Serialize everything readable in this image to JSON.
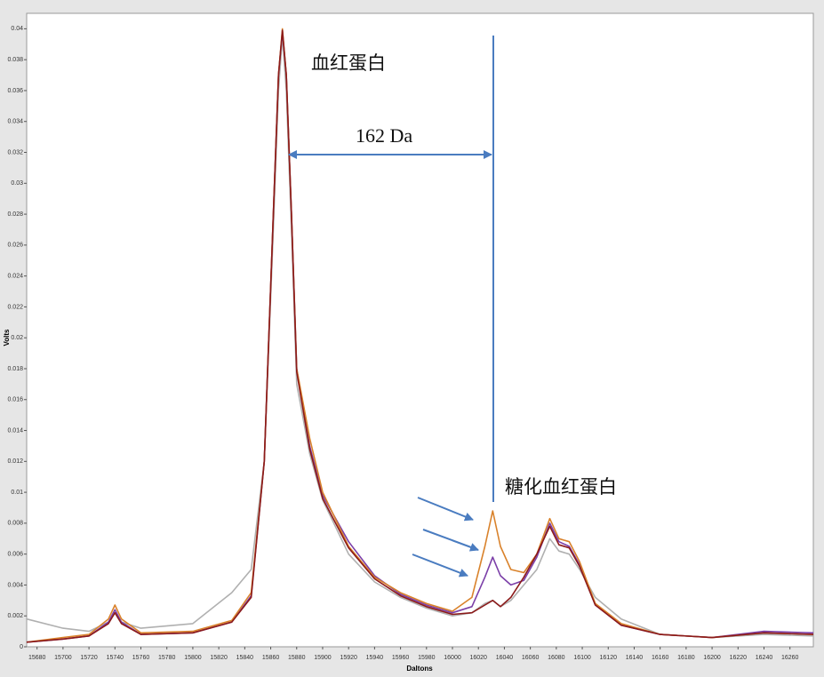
{
  "chart_data": {
    "type": "line",
    "y_label": "Volts",
    "x_label": "Daltons",
    "annotations": [
      "血红蛋白",
      "162 Da",
      "糖化血红蛋白"
    ],
    "xlim": [
      15672,
      16278
    ],
    "ylim": [
      0,
      0.041
    ],
    "xticks": [
      15680,
      15700,
      15720,
      15740,
      15760,
      15780,
      15800,
      15820,
      15840,
      15860,
      15880,
      15900,
      15920,
      15940,
      15960,
      15980,
      16000,
      16020,
      16040,
      16060,
      16080,
      16100,
      16120,
      16140,
      16160,
      16180,
      16200,
      16220,
      16240,
      16260
    ],
    "yticks": [
      0,
      0.002,
      0.004,
      0.006,
      0.008,
      0.01,
      0.012,
      0.014,
      0.016,
      0.018,
      0.02,
      0.022,
      0.024,
      0.026,
      0.028,
      0.03,
      0.032,
      0.034,
      0.036,
      0.038,
      0.04
    ],
    "grid": false,
    "x": [
      15672,
      15700,
      15720,
      15735,
      15740,
      15745,
      15760,
      15800,
      15830,
      15845,
      15855,
      15862,
      15866,
      15869,
      15872,
      15876,
      15880,
      15890,
      15900,
      15920,
      15940,
      15960,
      15980,
      16000,
      16015,
      16025,
      16031,
      16037,
      16045,
      16055,
      16065,
      16075,
      16082,
      16090,
      16098,
      16110,
      16130,
      16160,
      16200,
      16240,
      16278
    ],
    "series": [
      {
        "color": "#b0b0b0",
        "values": [
          0.0018,
          0.0012,
          0.001,
          0.0016,
          0.0022,
          0.0016,
          0.0012,
          0.0015,
          0.0035,
          0.005,
          0.012,
          0.027,
          0.036,
          0.0395,
          0.036,
          0.027,
          0.017,
          0.0125,
          0.0095,
          0.006,
          0.0042,
          0.0032,
          0.0025,
          0.002,
          0.0022,
          0.0028,
          0.003,
          0.0026,
          0.003,
          0.004,
          0.005,
          0.007,
          0.0062,
          0.006,
          0.005,
          0.0032,
          0.0018,
          0.0008,
          0.0006,
          0.0008,
          0.0007
        ]
      },
      {
        "color": "#7b3fa8",
        "values": [
          0.0003,
          0.0005,
          0.0007,
          0.0016,
          0.0024,
          0.0016,
          0.0008,
          0.0009,
          0.0016,
          0.0033,
          0.012,
          0.028,
          0.037,
          0.0398,
          0.037,
          0.028,
          0.018,
          0.013,
          0.0098,
          0.0068,
          0.0046,
          0.0034,
          0.0027,
          0.0022,
          0.0026,
          0.0045,
          0.0058,
          0.0046,
          0.004,
          0.0043,
          0.0058,
          0.008,
          0.0068,
          0.0065,
          0.0053,
          0.0027,
          0.0014,
          0.0008,
          0.0006,
          0.001,
          0.0009
        ]
      },
      {
        "color": "#d9822b",
        "values": [
          0.0003,
          0.0006,
          0.0008,
          0.0018,
          0.0027,
          0.0018,
          0.0009,
          0.001,
          0.0017,
          0.0035,
          0.012,
          0.028,
          0.037,
          0.04,
          0.037,
          0.028,
          0.018,
          0.0135,
          0.01,
          0.0065,
          0.0045,
          0.0035,
          0.0028,
          0.0023,
          0.0032,
          0.0065,
          0.0088,
          0.0065,
          0.005,
          0.0048,
          0.006,
          0.0083,
          0.007,
          0.0068,
          0.0055,
          0.0028,
          0.0015,
          0.0008,
          0.0006,
          0.0009,
          0.0008
        ]
      },
      {
        "color": "#8b1a1a",
        "values": [
          0.0003,
          0.0005,
          0.0007,
          0.0015,
          0.0022,
          0.0015,
          0.0008,
          0.0009,
          0.0016,
          0.0032,
          0.012,
          0.028,
          0.037,
          0.0399,
          0.037,
          0.028,
          0.0178,
          0.0128,
          0.0096,
          0.0064,
          0.0044,
          0.0033,
          0.0026,
          0.0021,
          0.0022,
          0.0027,
          0.003,
          0.0026,
          0.0032,
          0.0045,
          0.006,
          0.0078,
          0.0066,
          0.0064,
          0.0052,
          0.0027,
          0.0014,
          0.0008,
          0.0006,
          0.0009,
          0.0008
        ]
      }
    ]
  }
}
